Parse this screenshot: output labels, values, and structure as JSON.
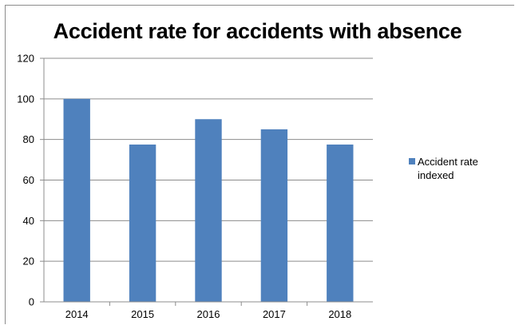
{
  "chart_data": {
    "type": "bar",
    "title": "Accident rate for accidents with absence",
    "categories": [
      "2014",
      "2015",
      "2016",
      "2017",
      "2018"
    ],
    "series": [
      {
        "name": "Accident rate indexed",
        "values": [
          100,
          77.5,
          90,
          85,
          77.5
        ],
        "color": "#4f81bd"
      }
    ],
    "ylim": [
      0,
      120
    ],
    "yticks": [
      "0",
      "20",
      "40",
      "60",
      "80",
      "100",
      "120"
    ],
    "grid": true,
    "legend": "right"
  }
}
